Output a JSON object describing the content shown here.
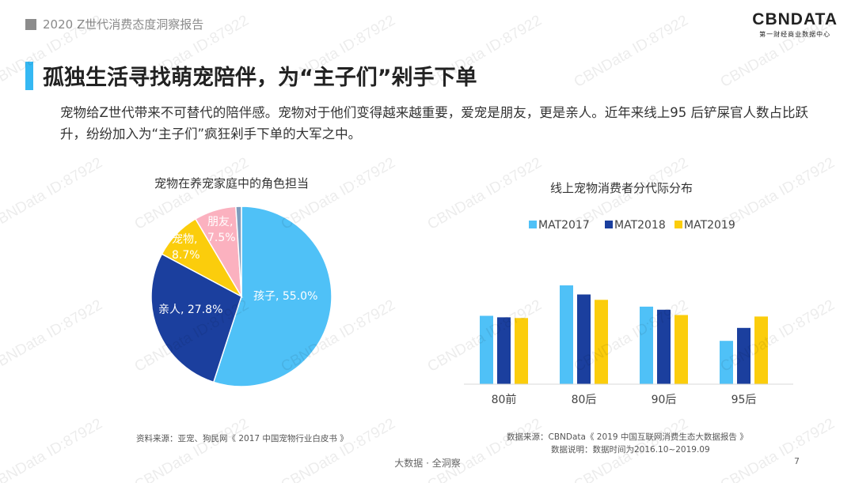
{
  "header": {
    "report_title": "2020 Z世代消费态度洞察报告"
  },
  "logo": {
    "brand": "CBNDATA",
    "tagline": "第一财经商业数据中心"
  },
  "headline": "孤独生活寻找萌宠陪伴，为“主子们”剁手下单",
  "description": "宠物给Z世代带来不可替代的陪伴感。宠物对于他们变得越来越重要，爱宠是朋友，更是亲人。近年来线上95 后铲屎官人数占比跃升，纷纷加入为“主子们”疯狂剁手下单的大军之中。",
  "watermark": "CBNData ID:87922",
  "colors": {
    "accent": "#35b8f3",
    "light_blue": "#4fc1f7",
    "dark_blue": "#1b3f9e",
    "yellow": "#fbcd0c",
    "pink": "#fbb1bf",
    "slate": "#7f9dbd"
  },
  "chart_data": [
    {
      "type": "pie",
      "title": "宠物在养宠家庭中的角色担当",
      "slices": [
        {
          "label": "孩子",
          "value": 55.0,
          "display": "孩子, 55.0%",
          "color": "#4fc1f7"
        },
        {
          "label": "亲人",
          "value": 27.8,
          "display": "亲人, 27.8%",
          "color": "#1b3f9e"
        },
        {
          "label": "宠物",
          "value": 8.7,
          "display_line1": "宠物,",
          "display_line2": "8.7%",
          "color": "#fbcd0c"
        },
        {
          "label": "朋友",
          "value": 7.5,
          "display_line1": "朋友,",
          "display_line2": "7.5%",
          "color": "#fbb1bf"
        },
        {
          "label": "",
          "value": 1.0,
          "color": "#7f9dbd"
        }
      ],
      "source": "资料来源：亚宠、狗民网《 2017 中国宠物行业白皮书 》"
    },
    {
      "type": "bar",
      "title": "线上宠物消费者分代际分布",
      "categories": [
        "80前",
        "80后",
        "90后",
        "95后"
      ],
      "series": [
        {
          "name": "MAT2017",
          "color": "#4fc1f7",
          "values": [
            0.9,
            1.3,
            1.02,
            0.57
          ]
        },
        {
          "name": "MAT2018",
          "color": "#1b3f9e",
          "values": [
            0.88,
            1.18,
            0.98,
            0.74
          ]
        },
        {
          "name": "MAT2019",
          "color": "#fbcd0c",
          "values": [
            0.87,
            1.11,
            0.91,
            0.89
          ]
        }
      ],
      "ylim": [
        0,
        1.45
      ],
      "grid": false,
      "legend": "top",
      "source_line1": "数据来源：CBNData《 2019 中国互联网消费生态大数据报告 》",
      "source_line2": "数据说明：数据时间为2016.10~2019.09"
    }
  ],
  "footer": {
    "text": "大数据 · 全洞察",
    "page": "7"
  }
}
